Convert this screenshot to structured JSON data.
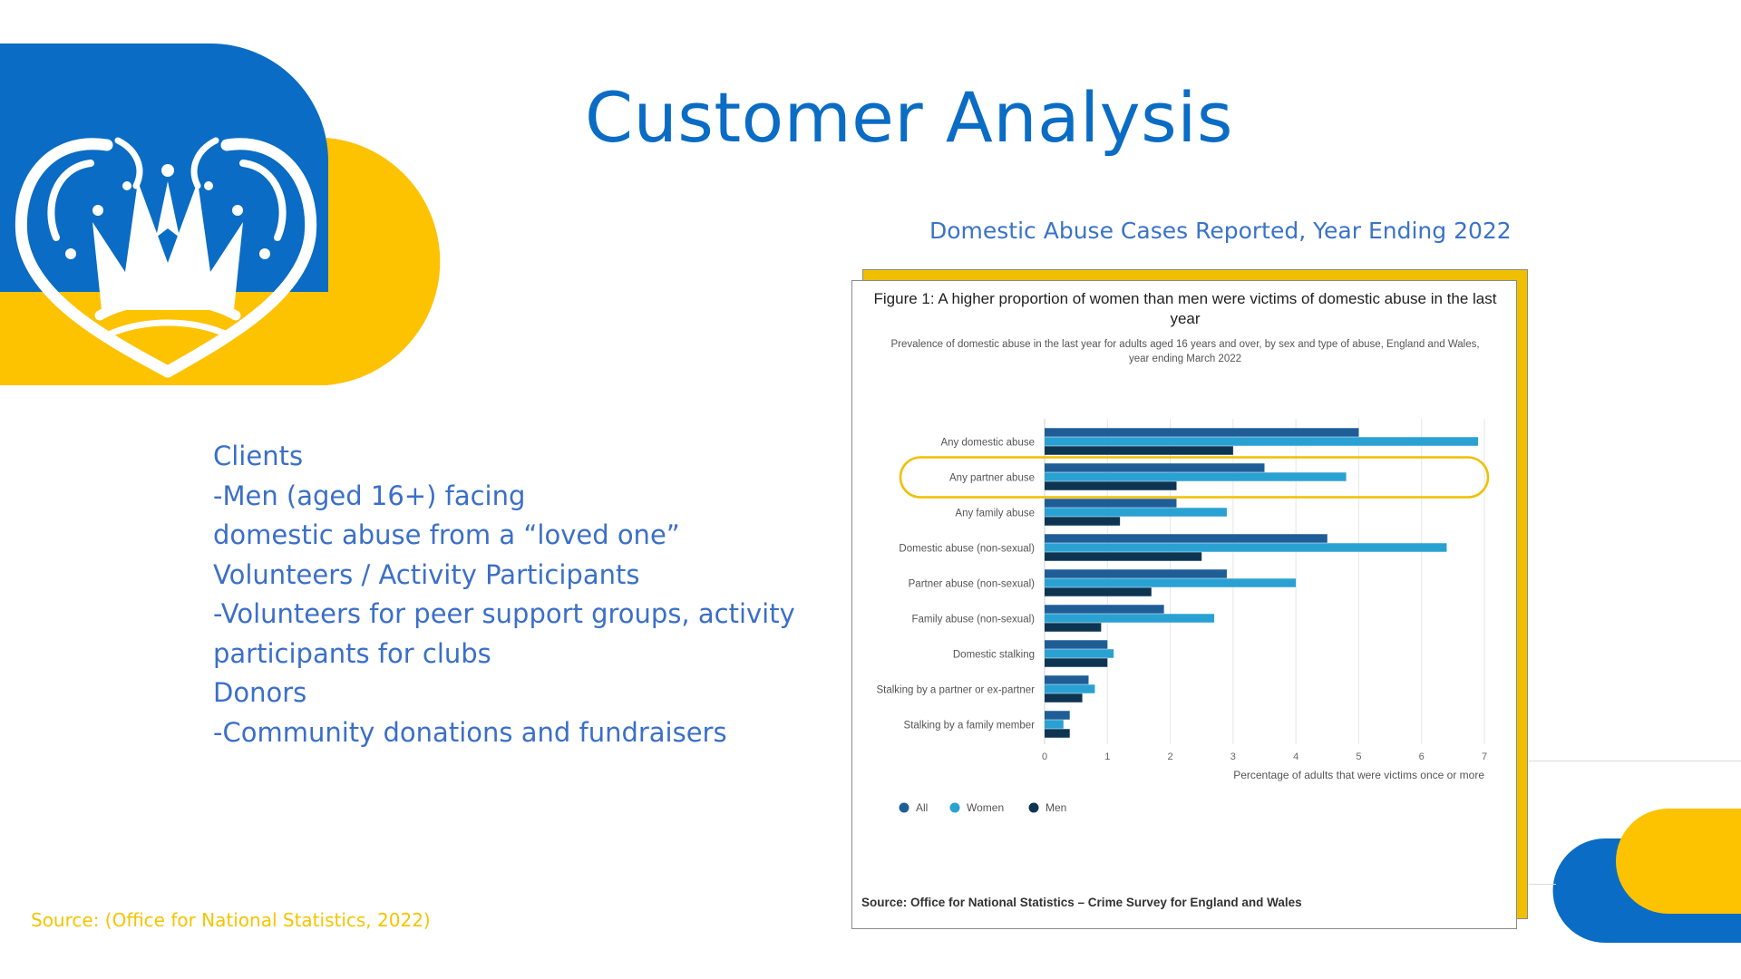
{
  "page": {
    "title": "Customer Analysis",
    "chart_heading": "Domestic Abuse Cases Reported, Year Ending 2022",
    "bullets": [
      "Clients",
      "-Men (aged 16+) facing",
      "domestic abuse from a “loved one”",
      "Volunteers / Activity Participants",
      "-Volunteers for peer support groups, activity",
      "participants for clubs",
      "Donors",
      "-Community donations and fundraisers"
    ],
    "source_note": "Source: (Office for National Statistics, 2022)"
  },
  "colors": {
    "brand_blue": "#0a6cc4",
    "brand_yellow": "#fdc200",
    "text_blue": "#3b6fc9",
    "series_all": "#1f5d97",
    "series_women": "#2aa1d3",
    "series_men": "#0d3552",
    "highlight": "#f0bf00"
  },
  "chart_data": {
    "type": "bar",
    "orientation": "horizontal",
    "title": "Figure 1: A higher proportion of women than men were victims of domestic abuse in the last year",
    "subtitle": "Prevalence of domestic abuse in the last year for adults aged 16 years and over, by sex and type of abuse, England and Wales, year ending March 2022",
    "categories": [
      "Any domestic abuse",
      "Any partner abuse",
      "Any family abuse",
      "Domestic abuse (non-sexual)",
      "Partner abuse (non-sexual)",
      "Family abuse (non-sexual)",
      "Domestic stalking",
      "Stalking by a partner or ex-partner",
      "Stalking by a family member"
    ],
    "series": [
      {
        "name": "All",
        "values": [
          5.0,
          3.5,
          2.1,
          4.5,
          2.9,
          1.9,
          1.0,
          0.7,
          0.4
        ]
      },
      {
        "name": "Women",
        "values": [
          6.9,
          4.8,
          2.9,
          6.4,
          4.0,
          2.7,
          1.1,
          0.8,
          0.3
        ]
      },
      {
        "name": "Men",
        "values": [
          3.0,
          2.1,
          1.2,
          2.5,
          1.7,
          0.9,
          1.0,
          0.6,
          0.4
        ]
      }
    ],
    "xlabel": "Percentage of adults that were victims once or more",
    "ylabel": "",
    "xlim": [
      0,
      7
    ],
    "xticks": [
      "0",
      "1",
      "2",
      "3",
      "4",
      "5",
      "6",
      "7"
    ],
    "grid": true,
    "legend": "bottom-left",
    "highlighted_category": "Any partner abuse",
    "source": "Source: Office for National Statistics – Crime Survey for England and Wales"
  }
}
